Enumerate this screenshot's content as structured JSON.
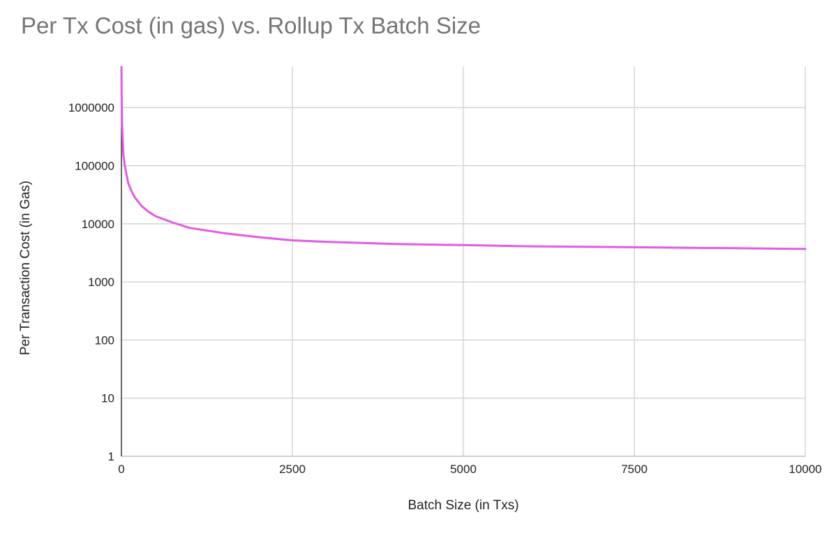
{
  "chart_data": {
    "type": "line",
    "title": "Per Tx Cost (in gas) vs. Rollup Tx Batch Size",
    "xlabel": "Batch Size (in Txs)",
    "ylabel": "Per Transaction Cost (in Gas)",
    "xlim": [
      0,
      10000
    ],
    "ylim": [
      1,
      5000000
    ],
    "yscale": "log",
    "grid": true,
    "x_ticks": [
      "0",
      "2500",
      "5000",
      "7500",
      "10000"
    ],
    "y_ticks": [
      "1",
      "10",
      "100",
      "1000",
      "10000",
      "100000",
      "1000000"
    ],
    "series": [
      {
        "color": "#e35be2",
        "x": [
          1,
          2,
          5,
          10,
          20,
          30,
          50,
          75,
          100,
          150,
          200,
          300,
          400,
          500,
          750,
          1000,
          1500,
          2000,
          2500,
          3000,
          4000,
          5000,
          6000,
          7000,
          7500,
          8000,
          9000,
          10000
        ],
        "y": [
          5000000,
          2500000,
          1000000,
          500000,
          250000,
          150000,
          100000,
          70000,
          50000,
          36000,
          28000,
          20000,
          16000,
          13500,
          10500,
          8500,
          6900,
          5900,
          5200,
          4900,
          4500,
          4300,
          4100,
          4000,
          3950,
          3900,
          3800,
          3700
        ]
      }
    ]
  }
}
